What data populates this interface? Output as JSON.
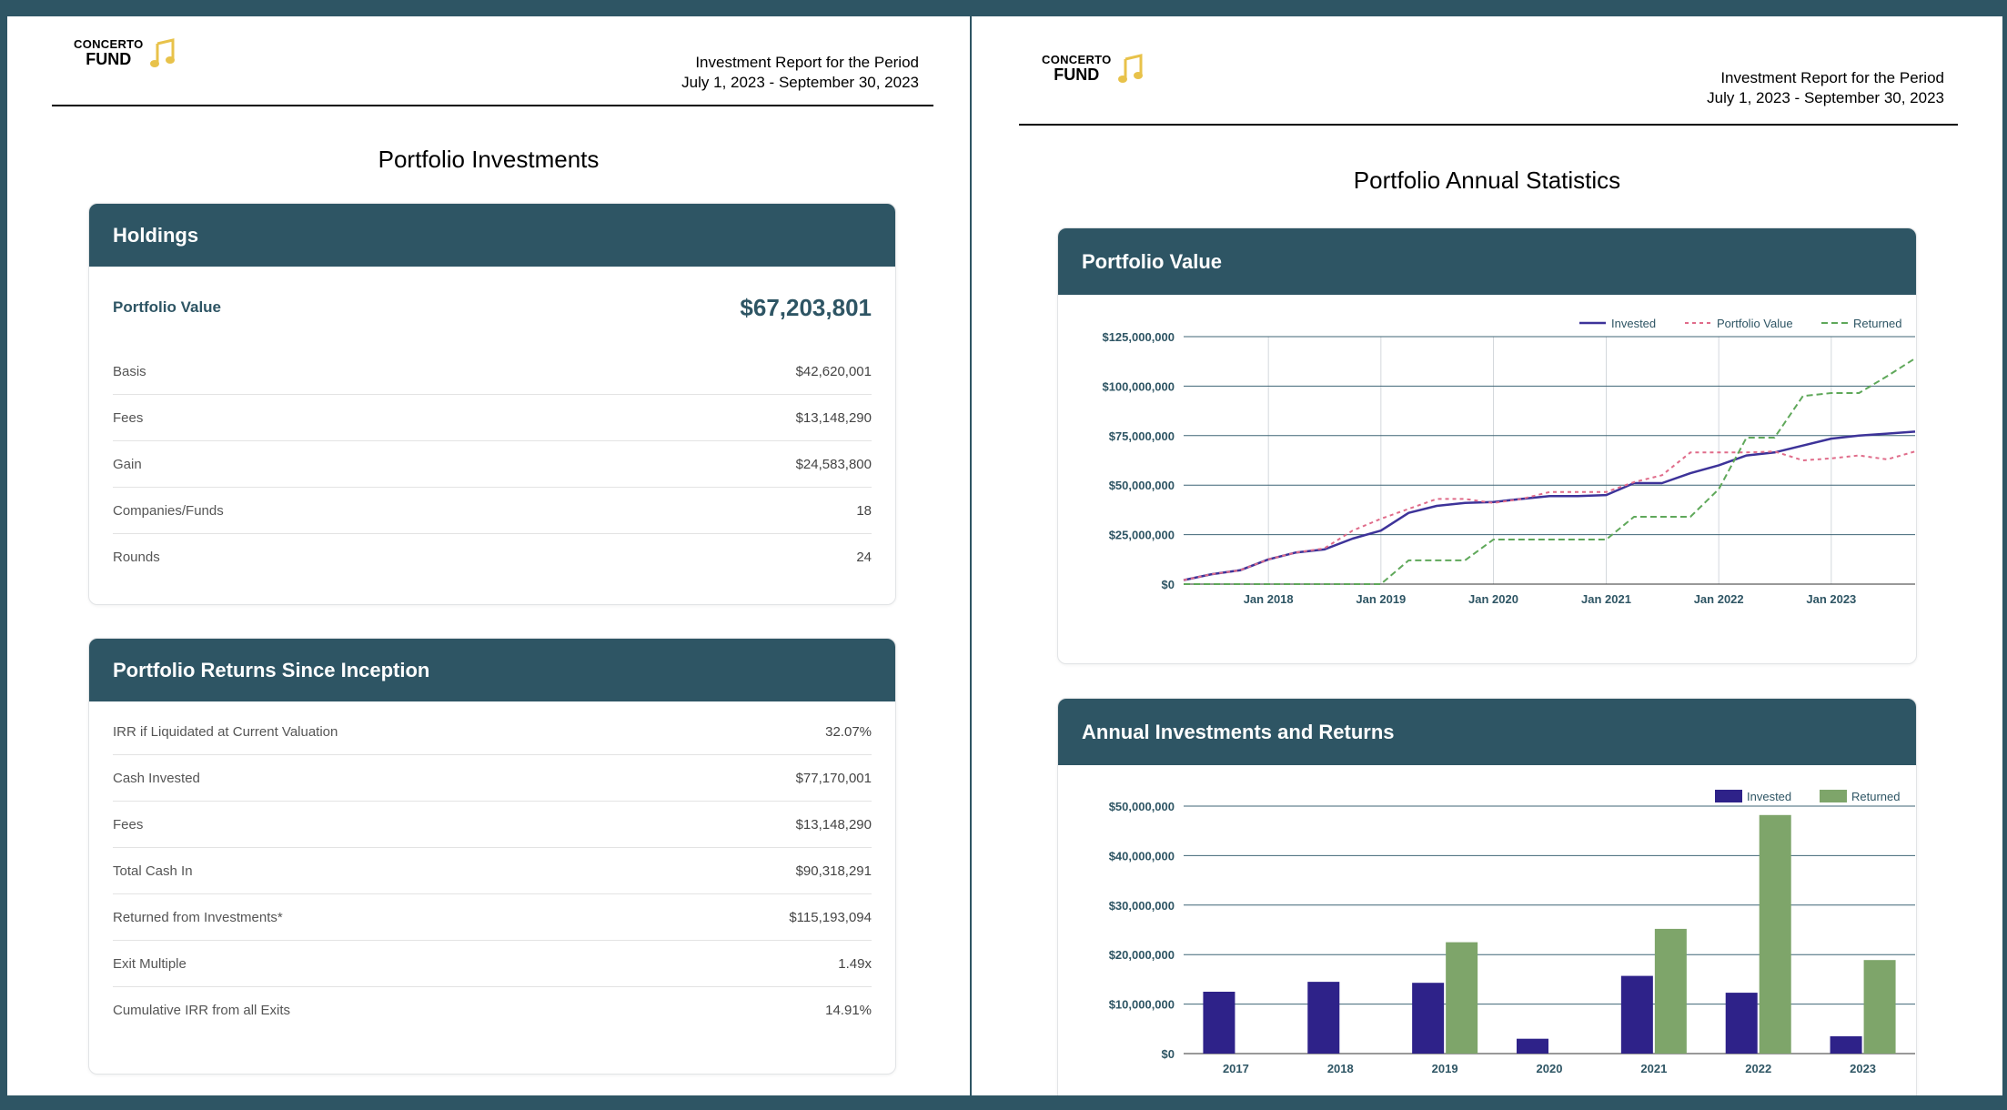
{
  "left": {
    "logo": {
      "line1": "CONCERTO",
      "line2": "FUND",
      "icon": "music-note-icon"
    },
    "period": {
      "line1": "Investment Report for the Period",
      "line2": "July 1, 2023 - September 30, 2023"
    },
    "title": "Portfolio Investments",
    "holdings": {
      "header": "Holdings",
      "hero_label": "Portfolio Value",
      "hero_value": "$67,203,801",
      "rows": [
        {
          "label": "Basis",
          "value": "$42,620,001"
        },
        {
          "label": "Fees",
          "value": "$13,148,290"
        },
        {
          "label": "Gain",
          "value": "$24,583,800"
        },
        {
          "label": "Companies/Funds",
          "value": "18"
        },
        {
          "label": "Rounds",
          "value": "24"
        }
      ]
    },
    "returns": {
      "header": "Portfolio Returns Since Inception",
      "rows": [
        {
          "label": "IRR if Liquidated at Current Valuation",
          "value": "32.07%"
        },
        {
          "label": "Cash Invested",
          "value": "$77,170,001"
        },
        {
          "label": "Fees",
          "value": "$13,148,290"
        },
        {
          "label": "Total Cash In",
          "value": "$90,318,291"
        },
        {
          "label": "Returned from Investments*",
          "value": "$115,193,094"
        },
        {
          "label": "Exit Multiple",
          "value": "1.49x"
        },
        {
          "label": "Cumulative IRR from all Exits",
          "value": "14.91%"
        }
      ]
    }
  },
  "right": {
    "logo": {
      "line1": "CONCERTO",
      "line2": "FUND",
      "icon": "music-note-icon"
    },
    "period": {
      "line1": "Investment Report for the Period",
      "line2": "July 1, 2023 - September 30, 2023"
    },
    "title": "Portfolio Annual Statistics",
    "line_card_header": "Portfolio Value",
    "bar_card_header": "Annual Investments and Returns"
  },
  "colors": {
    "brand": "#2e5564",
    "invested": "#3d3399",
    "portfolio_value": "#e06c8a",
    "returned": "#5fa85a",
    "bar_invested": "#2e2289",
    "bar_returned": "#7ea56a",
    "logo_note": "#e8c24a"
  },
  "chart_data": [
    {
      "type": "line",
      "title": "Portfolio Value",
      "xlabel": "",
      "ylabel": "",
      "ylim": [
        0,
        125000000
      ],
      "y_ticks": [
        0,
        25000000,
        50000000,
        75000000,
        100000000,
        125000000
      ],
      "y_tick_labels": [
        "$0",
        "$25,000,000",
        "$50,000,000",
        "$75,000,000",
        "$100,000,000",
        "$125,000,000"
      ],
      "x_range": [
        "2017-04-01",
        "2023-09-30"
      ],
      "x_ticks": [
        "2018-01-01",
        "2019-01-01",
        "2020-01-01",
        "2021-01-01",
        "2022-01-01",
        "2023-01-01"
      ],
      "x_tick_labels": [
        "Jan 2018",
        "Jan 2019",
        "Jan 2020",
        "Jan 2021",
        "Jan 2022",
        "Jan 2023"
      ],
      "grid": true,
      "legend": "top-right",
      "series": [
        {
          "name": "Invested",
          "style": "solid",
          "x": [
            "2017-04-01",
            "2017-07-01",
            "2017-10-01",
            "2018-01-01",
            "2018-04-01",
            "2018-07-01",
            "2018-10-01",
            "2019-01-01",
            "2019-04-01",
            "2019-07-01",
            "2019-10-01",
            "2020-01-01",
            "2020-04-01",
            "2020-07-01",
            "2020-10-01",
            "2021-01-01",
            "2021-04-01",
            "2021-07-01",
            "2021-10-01",
            "2022-01-01",
            "2022-04-01",
            "2022-07-01",
            "2022-10-01",
            "2023-01-01",
            "2023-04-01",
            "2023-07-01",
            "2023-09-30"
          ],
          "y": [
            2000000,
            5000000,
            7000000,
            12500000,
            16000000,
            17500000,
            23000000,
            27000000,
            36000000,
            39500000,
            41000000,
            41500000,
            43000000,
            44500000,
            44500000,
            45000000,
            51000000,
            51000000,
            56000000,
            60000000,
            65000000,
            66500000,
            70000000,
            73500000,
            75000000,
            76000000,
            77000000
          ]
        },
        {
          "name": "Portfolio Value",
          "style": "dotted",
          "x": [
            "2017-04-01",
            "2017-07-01",
            "2017-10-01",
            "2018-01-01",
            "2018-04-01",
            "2018-07-01",
            "2018-10-01",
            "2019-01-01",
            "2019-04-01",
            "2019-07-01",
            "2019-10-01",
            "2020-01-01",
            "2020-04-01",
            "2020-07-01",
            "2020-10-01",
            "2021-01-01",
            "2021-04-01",
            "2021-07-01",
            "2021-10-01",
            "2022-01-01",
            "2022-04-01",
            "2022-07-01",
            "2022-10-01",
            "2023-01-01",
            "2023-04-01",
            "2023-07-01",
            "2023-09-30"
          ],
          "y": [
            2000000,
            5000000,
            7000000,
            12500000,
            16000000,
            18000000,
            27000000,
            33000000,
            38000000,
            43000000,
            43000000,
            41000000,
            43000000,
            46500000,
            46500000,
            46500000,
            51500000,
            55000000,
            66500000,
            66500000,
            66500000,
            67000000,
            62500000,
            63500000,
            65000000,
            63000000,
            67000000
          ]
        },
        {
          "name": "Returned",
          "style": "dashed",
          "x": [
            "2017-04-01",
            "2017-07-01",
            "2017-10-01",
            "2018-01-01",
            "2018-04-01",
            "2018-07-01",
            "2018-10-01",
            "2019-01-01",
            "2019-04-01",
            "2019-07-01",
            "2019-10-01",
            "2020-01-01",
            "2020-04-01",
            "2020-07-01",
            "2020-10-01",
            "2021-01-01",
            "2021-04-01",
            "2021-07-01",
            "2021-10-01",
            "2022-01-01",
            "2022-04-01",
            "2022-07-01",
            "2022-10-01",
            "2023-01-01",
            "2023-04-01",
            "2023-07-01",
            "2023-09-30"
          ],
          "y": [
            0,
            0,
            0,
            0,
            0,
            0,
            0,
            0,
            12000000,
            12000000,
            12000000,
            22500000,
            22500000,
            22500000,
            22500000,
            22500000,
            34000000,
            34000000,
            34000000,
            48000000,
            74000000,
            74000000,
            95000000,
            96500000,
            96500000,
            105000000,
            114000000
          ]
        }
      ]
    },
    {
      "type": "bar",
      "title": "Annual Investments and Returns",
      "xlabel": "",
      "ylabel": "",
      "ylim": [
        0,
        50000000
      ],
      "y_ticks": [
        0,
        10000000,
        20000000,
        30000000,
        40000000,
        50000000
      ],
      "y_tick_labels": [
        "$0",
        "$10,000,000",
        "$20,000,000",
        "$30,000,000",
        "$40,000,000",
        "$50,000,000"
      ],
      "categories": [
        "2017",
        "2018",
        "2019",
        "2020",
        "2021",
        "2022",
        "2023"
      ],
      "grid": true,
      "legend": "top-right",
      "series": [
        {
          "name": "Invested",
          "values": [
            12500000,
            14500000,
            14300000,
            3000000,
            15700000,
            12300000,
            3500000
          ]
        },
        {
          "name": "Returned",
          "values": [
            0,
            0,
            22500000,
            0,
            25200000,
            48200000,
            18900000
          ]
        }
      ]
    }
  ]
}
